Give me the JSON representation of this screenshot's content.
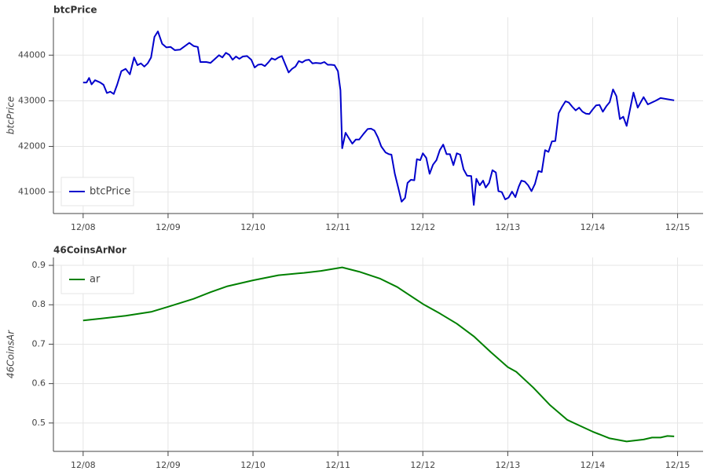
{
  "chart_data": [
    {
      "type": "line",
      "title": "btcPrice",
      "ylabel": "btcPrice",
      "legend": "bottom_left",
      "grid": true,
      "xlim": [
        -0.35,
        7.3
      ],
      "ylim": [
        40530,
        44830
      ],
      "xticks": [
        {
          "value": 0,
          "label": "12/08"
        },
        {
          "value": 1,
          "label": "12/09"
        },
        {
          "value": 2,
          "label": "12/10"
        },
        {
          "value": 3,
          "label": "12/11"
        },
        {
          "value": 4,
          "label": "12/12"
        },
        {
          "value": 5,
          "label": "12/13"
        },
        {
          "value": 6,
          "label": "12/14"
        },
        {
          "value": 7,
          "label": "12/15"
        }
      ],
      "yticks": [
        41000,
        42000,
        43000,
        44000
      ],
      "series": [
        {
          "name": "btcPrice",
          "color": "#0000cc",
          "x": [
            0,
            0.04,
            0.07,
            0.1,
            0.14,
            0.2,
            0.24,
            0.28,
            0.32,
            0.36,
            0.4,
            0.45,
            0.5,
            0.55,
            0.6,
            0.64,
            0.68,
            0.72,
            0.76,
            0.8,
            0.84,
            0.88,
            0.93,
            0.98,
            1.03,
            1.08,
            1.14,
            1.2,
            1.25,
            1.3,
            1.35,
            1.38,
            1.45,
            1.5,
            1.56,
            1.6,
            1.64,
            1.68,
            1.72,
            1.76,
            1.8,
            1.84,
            1.88,
            1.93,
            1.98,
            2.02,
            2.06,
            2.1,
            2.14,
            2.18,
            2.22,
            2.26,
            2.3,
            2.34,
            2.38,
            2.42,
            2.46,
            2.5,
            2.54,
            2.58,
            2.62,
            2.66,
            2.7,
            2.74,
            2.8,
            2.84,
            2.88,
            2.92,
            2.96,
            3.0,
            3.03,
            3.05,
            3.09,
            3.13,
            3.17,
            3.21,
            3.25,
            3.3,
            3.35,
            3.39,
            3.43,
            3.47,
            3.51,
            3.56,
            3.6,
            3.63,
            3.67,
            3.71,
            3.75,
            3.79,
            3.82,
            3.86,
            3.9,
            3.93,
            3.97,
            4.0,
            4.04,
            4.08,
            4.12,
            4.16,
            4.2,
            4.24,
            4.28,
            4.32,
            4.36,
            4.4,
            4.44,
            4.48,
            4.52,
            4.57,
            4.6,
            4.63,
            4.67,
            4.71,
            4.74,
            4.78,
            4.82,
            4.86,
            4.89,
            4.93,
            4.97,
            5.01,
            5.05,
            5.09,
            5.13,
            5.16,
            5.2,
            5.24,
            5.28,
            5.32,
            5.36,
            5.4,
            5.44,
            5.48,
            5.52,
            5.56,
            5.6,
            5.64,
            5.68,
            5.72,
            5.76,
            5.8,
            5.84,
            5.88,
            5.92,
            5.96,
            6.0,
            6.04,
            6.08,
            6.12,
            6.16,
            6.2,
            6.24,
            6.28,
            6.32,
            6.36,
            6.4,
            6.48,
            6.53,
            6.6,
            6.65,
            6.74,
            6.8,
            6.96
          ],
          "values": [
            43400,
            43400,
            43500,
            43360,
            43450,
            43400,
            43350,
            43170,
            43200,
            43150,
            43350,
            43650,
            43700,
            43580,
            43950,
            43780,
            43820,
            43750,
            43820,
            43950,
            44400,
            44520,
            44250,
            44170,
            44180,
            44110,
            44120,
            44200,
            44270,
            44200,
            44180,
            43850,
            43850,
            43830,
            43930,
            44000,
            43950,
            44050,
            44010,
            43900,
            43970,
            43920,
            43970,
            43980,
            43900,
            43730,
            43790,
            43800,
            43760,
            43840,
            43930,
            43900,
            43950,
            43980,
            43800,
            43620,
            43700,
            43750,
            43870,
            43840,
            43890,
            43900,
            43820,
            43830,
            43820,
            43850,
            43790,
            43790,
            43780,
            43650,
            43230,
            41960,
            42300,
            42180,
            42060,
            42150,
            42150,
            42270,
            42380,
            42390,
            42350,
            42200,
            42000,
            41870,
            41830,
            41820,
            41400,
            41100,
            40790,
            40870,
            41200,
            41270,
            41260,
            41720,
            41700,
            41850,
            41750,
            41400,
            41600,
            41700,
            41920,
            42040,
            41830,
            41830,
            41590,
            41850,
            41820,
            41500,
            41360,
            41350,
            40720,
            41290,
            41150,
            41250,
            41100,
            41200,
            41480,
            41430,
            41020,
            41000,
            40840,
            40880,
            41010,
            40890,
            41120,
            41250,
            41230,
            41150,
            41020,
            41180,
            41460,
            41440,
            41920,
            41880,
            42110,
            42120,
            42730,
            42870,
            42990,
            42960,
            42870,
            42790,
            42850,
            42760,
            42720,
            42710,
            42810,
            42900,
            42910,
            42760,
            42880,
            42970,
            43250,
            43100,
            42600,
            42650,
            42450,
            43180,
            42850,
            43080,
            42920,
            43000,
            43060,
            43010
          ]
        }
      ]
    },
    {
      "type": "line",
      "title": "46CoinsArNor",
      "ylabel": "46CoinsAr",
      "legend": "top_left",
      "grid": true,
      "xlim": [
        -0.35,
        7.3
      ],
      "ylim": [
        0.428,
        0.92
      ],
      "xticks": [
        {
          "value": 0,
          "label": "12/08"
        },
        {
          "value": 1,
          "label": "12/09"
        },
        {
          "value": 2,
          "label": "12/10"
        },
        {
          "value": 3,
          "label": "12/11"
        },
        {
          "value": 4,
          "label": "12/12"
        },
        {
          "value": 5,
          "label": "12/13"
        },
        {
          "value": 6,
          "label": "12/14"
        },
        {
          "value": 7,
          "label": "12/15"
        }
      ],
      "yticks": [
        0.5,
        0.6,
        0.7,
        0.8,
        0.9
      ],
      "series": [
        {
          "name": "ar",
          "color": "#008000",
          "x": [
            0,
            0.5,
            0.8,
            1,
            1.3,
            1.5,
            1.7,
            2,
            2.3,
            2.6,
            2.8,
            3.05,
            3.25,
            3.5,
            3.7,
            4,
            4.2,
            4.4,
            4.6,
            4.8,
            5,
            5.1,
            5.3,
            5.5,
            5.7,
            5.8,
            6,
            6.2,
            6.4,
            6.6,
            6.7,
            6.8,
            6.88,
            6.96
          ],
          "values": [
            0.76,
            0.772,
            0.782,
            0.795,
            0.815,
            0.832,
            0.847,
            0.862,
            0.875,
            0.881,
            0.886,
            0.895,
            0.884,
            0.866,
            0.845,
            0.802,
            0.778,
            0.752,
            0.72,
            0.68,
            0.642,
            0.63,
            0.59,
            0.545,
            0.508,
            0.498,
            0.478,
            0.461,
            0.453,
            0.458,
            0.463,
            0.463,
            0.467,
            0.466
          ]
        }
      ]
    }
  ]
}
